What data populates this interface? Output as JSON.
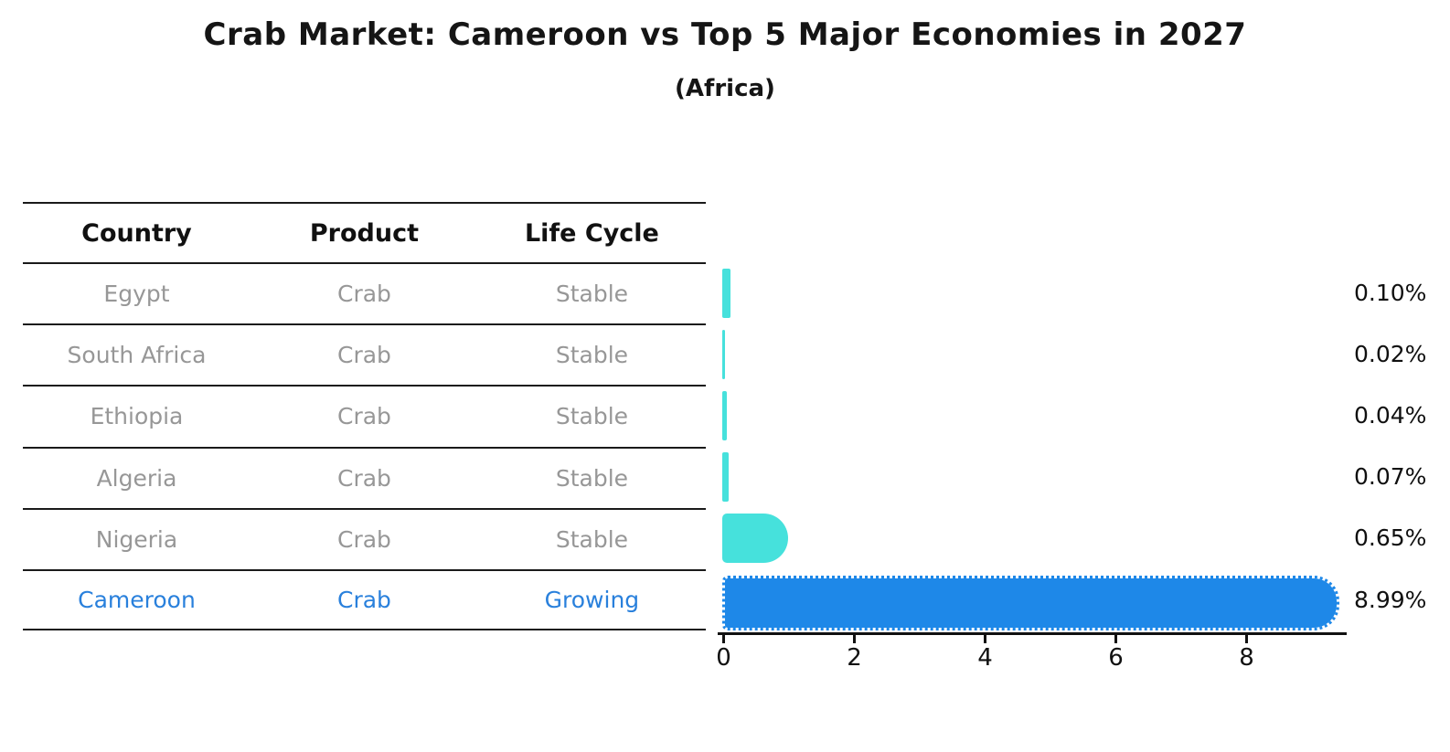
{
  "title": "Crab Market: Cameroon vs Top 5 Major Economies in 2027",
  "subtitle": "(Africa)",
  "table": {
    "headers": [
      "Country",
      "Product",
      "Life Cycle"
    ]
  },
  "rows": [
    {
      "country": "Egypt",
      "product": "Crab",
      "life_cycle": "Stable",
      "value": 0.1,
      "label": "0.10%",
      "highlight": false
    },
    {
      "country": "South Africa",
      "product": "Crab",
      "life_cycle": "Stable",
      "value": 0.02,
      "label": "0.02%",
      "highlight": false
    },
    {
      "country": "Ethiopia",
      "product": "Crab",
      "life_cycle": "Stable",
      "value": 0.04,
      "label": "0.04%",
      "highlight": false
    },
    {
      "country": "Algeria",
      "product": "Crab",
      "life_cycle": "Stable",
      "value": 0.07,
      "label": "0.07%",
      "highlight": false
    },
    {
      "country": "Nigeria",
      "product": "Crab",
      "life_cycle": "Stable",
      "value": 0.65,
      "label": "0.65%",
      "highlight": false
    },
    {
      "country": "Cameroon",
      "product": "Crab",
      "life_cycle": "Growing",
      "value": 8.99,
      "label": "8.99%",
      "highlight": true
    }
  ],
  "colors": {
    "bar": "#46E1DC",
    "highlight_bar": "#1E88E8",
    "highlight_text": "#2980DC",
    "table_text": "#979797",
    "heading_text": "#111111"
  },
  "chart_data": {
    "type": "bar",
    "orientation": "horizontal",
    "title": "Crab Market: Cameroon vs Top 5 Major Economies in 2027",
    "subtitle": "(Africa)",
    "categories": [
      "Egypt",
      "South Africa",
      "Ethiopia",
      "Algeria",
      "Nigeria",
      "Cameroon"
    ],
    "values": [
      0.1,
      0.02,
      0.04,
      0.07,
      0.65,
      8.99
    ],
    "value_labels": [
      "0.10%",
      "0.02%",
      "0.04%",
      "0.07%",
      "0.65%",
      "8.99%"
    ],
    "series_meta": {
      "product": "Crab",
      "life_cycles": [
        "Stable",
        "Stable",
        "Stable",
        "Stable",
        "Stable",
        "Growing"
      ]
    },
    "xlabel": "",
    "ylabel": "",
    "xlim": [
      0,
      9.5
    ],
    "xtick_labels": [
      "0",
      "2",
      "4",
      "6",
      "8"
    ],
    "xticks": [
      0,
      2,
      4,
      6,
      8
    ],
    "grid": false,
    "legend": null,
    "bar_color": "#46E1DC",
    "highlight_bar_color": "#1E88E8",
    "highlight_index": 5
  }
}
